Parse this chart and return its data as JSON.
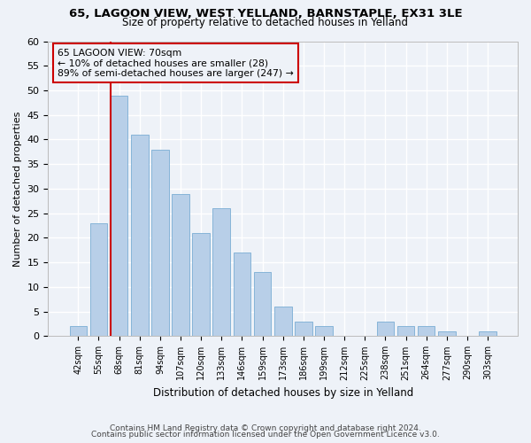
{
  "title1": "65, LAGOON VIEW, WEST YELLAND, BARNSTAPLE, EX31 3LE",
  "title2": "Size of property relative to detached houses in Yelland",
  "xlabel": "Distribution of detached houses by size in Yelland",
  "ylabel": "Number of detached properties",
  "categories": [
    "42sqm",
    "55sqm",
    "68sqm",
    "81sqm",
    "94sqm",
    "107sqm",
    "120sqm",
    "133sqm",
    "146sqm",
    "159sqm",
    "173sqm",
    "186sqm",
    "199sqm",
    "212sqm",
    "225sqm",
    "238sqm",
    "251sqm",
    "264sqm",
    "277sqm",
    "290sqm",
    "303sqm"
  ],
  "values": [
    2,
    23,
    49,
    41,
    38,
    29,
    21,
    26,
    17,
    13,
    6,
    3,
    2,
    0,
    0,
    3,
    2,
    2,
    1,
    0,
    1
  ],
  "bar_color": "#b8cfe8",
  "bar_edge_color": "#7aadd4",
  "annotation_box_text": "65 LAGOON VIEW: 70sqm\n← 10% of detached houses are smaller (28)\n89% of semi-detached houses are larger (247) →",
  "red_line_color": "#cc0000",
  "annot_box_edge_color": "#cc0000",
  "footer1": "Contains HM Land Registry data © Crown copyright and database right 2024.",
  "footer2": "Contains public sector information licensed under the Open Government Licence v3.0.",
  "ylim": [
    0,
    60
  ],
  "yticks": [
    0,
    5,
    10,
    15,
    20,
    25,
    30,
    35,
    40,
    45,
    50,
    55,
    60
  ],
  "bg_color": "#eef2f8",
  "grid_color": "#ffffff"
}
